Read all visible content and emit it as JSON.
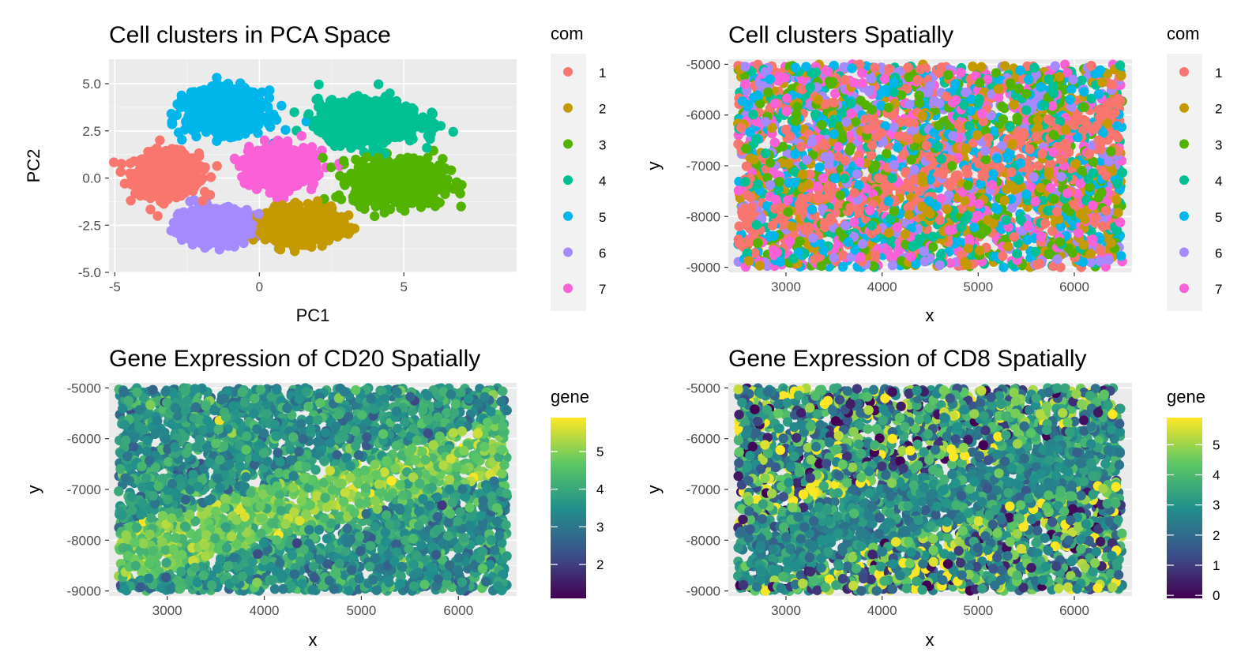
{
  "chart_data": [
    {
      "type": "scatter",
      "title": "Cell clusters in PCA Space",
      "xlabel": "PC1",
      "ylabel": "PC2",
      "xlim": [
        -5.2,
        8.9
      ],
      "ylim": [
        -5.0,
        6.3
      ],
      "xticks": [
        "-5",
        "0",
        "5"
      ],
      "xtick_values": [
        -5,
        0,
        5
      ],
      "yticks": [
        "-5.0",
        "-2.5",
        "0.0",
        "2.5",
        "5.0"
      ],
      "ytick_values": [
        -5.0,
        -2.5,
        0.0,
        2.5,
        5.0
      ],
      "grid": true,
      "legend_position": "right",
      "legend": {
        "title": "com",
        "entries": [
          {
            "label": "1",
            "color": "#F8766D"
          },
          {
            "label": "2",
            "color": "#C49A00"
          },
          {
            "label": "3",
            "color": "#53B400"
          },
          {
            "label": "4",
            "color": "#00C094"
          },
          {
            "label": "5",
            "color": "#00B6EB"
          },
          {
            "label": "6",
            "color": "#A58AFF"
          },
          {
            "label": "7",
            "color": "#FB61D7"
          }
        ]
      },
      "clusters": [
        {
          "label": "1",
          "center": [
            -3.2,
            0.2
          ],
          "spread": [
            1.0,
            1.0
          ]
        },
        {
          "label": "2",
          "center": [
            1.5,
            -2.5
          ],
          "spread": [
            1.1,
            0.8
          ]
        },
        {
          "label": "3",
          "center": [
            4.8,
            -0.2
          ],
          "spread": [
            1.4,
            1.1
          ]
        },
        {
          "label": "4",
          "center": [
            3.8,
            3.0
          ],
          "spread": [
            1.6,
            1.0
          ]
        },
        {
          "label": "5",
          "center": [
            -1.2,
            3.5
          ],
          "spread": [
            1.2,
            1.0
          ]
        },
        {
          "label": "6",
          "center": [
            -1.5,
            -2.5
          ],
          "spread": [
            1.1,
            0.8
          ]
        },
        {
          "label": "7",
          "center": [
            0.8,
            0.6
          ],
          "spread": [
            1.0,
            0.9
          ]
        }
      ]
    },
    {
      "type": "scatter",
      "title": "Cell clusters Spatially",
      "xlabel": "x",
      "ylabel": "y",
      "xlim": [
        2400,
        6600
      ],
      "ylim": [
        -9100,
        -4900
      ],
      "xticks": [
        "3000",
        "4000",
        "5000",
        "6000"
      ],
      "xtick_values": [
        3000,
        4000,
        5000,
        6000
      ],
      "yticks": [
        "-9000",
        "-8000",
        "-7000",
        "-6000",
        "-5000"
      ],
      "ytick_values": [
        -9000,
        -8000,
        -7000,
        -6000,
        -5000
      ],
      "grid": true,
      "legend_position": "right",
      "legend": {
        "title": "com",
        "entries": [
          {
            "label": "1",
            "color": "#F8766D"
          },
          {
            "label": "2",
            "color": "#C49A00"
          },
          {
            "label": "3",
            "color": "#53B400"
          },
          {
            "label": "4",
            "color": "#00C094"
          },
          {
            "label": "5",
            "color": "#00B6EB"
          },
          {
            "label": "6",
            "color": "#A58AFF"
          },
          {
            "label": "7",
            "color": "#FB61D7"
          }
        ]
      },
      "point_extent": {
        "x": [
          2500,
          6500
        ],
        "y": [
          -9000,
          -5000
        ]
      }
    },
    {
      "type": "scatter",
      "title": "Gene Expression of CD20 Spatially",
      "xlabel": "x",
      "ylabel": "y",
      "xlim": [
        2400,
        6600
      ],
      "ylim": [
        -9100,
        -4900
      ],
      "xticks": [
        "3000",
        "4000",
        "5000",
        "6000"
      ],
      "xtick_values": [
        3000,
        4000,
        5000,
        6000
      ],
      "yticks": [
        "-9000",
        "-8000",
        "-7000",
        "-6000",
        "-5000"
      ],
      "ytick_values": [
        -9000,
        -8000,
        -7000,
        -6000,
        -5000
      ],
      "grid": true,
      "legend_position": "right",
      "colorbar": {
        "title": "gene",
        "range": [
          1.1,
          5.9
        ],
        "ticks": [
          "2",
          "3",
          "4",
          "5"
        ],
        "tick_values": [
          2,
          3,
          4,
          5
        ],
        "palette": "viridis"
      },
      "point_extent": {
        "x": [
          2500,
          6500
        ],
        "y": [
          -9000,
          -5000
        ]
      }
    },
    {
      "type": "scatter",
      "title": "Gene Expression of CD8 Spatially",
      "xlabel": "x",
      "ylabel": "y",
      "xlim": [
        2400,
        6600
      ],
      "ylim": [
        -9100,
        -4900
      ],
      "xticks": [
        "3000",
        "4000",
        "5000",
        "6000"
      ],
      "xtick_values": [
        3000,
        4000,
        5000,
        6000
      ],
      "yticks": [
        "-9000",
        "-8000",
        "-7000",
        "-6000",
        "-5000"
      ],
      "ytick_values": [
        -9000,
        -8000,
        -7000,
        -6000,
        -5000
      ],
      "grid": true,
      "legend_position": "right",
      "colorbar": {
        "title": "gene",
        "range": [
          -0.1,
          5.9
        ],
        "ticks": [
          "0",
          "1",
          "2",
          "3",
          "4",
          "5"
        ],
        "tick_values": [
          0,
          1,
          2,
          3,
          4,
          5
        ],
        "palette": "viridis"
      },
      "point_extent": {
        "x": [
          2500,
          6500
        ],
        "y": [
          -9000,
          -5000
        ]
      }
    }
  ]
}
